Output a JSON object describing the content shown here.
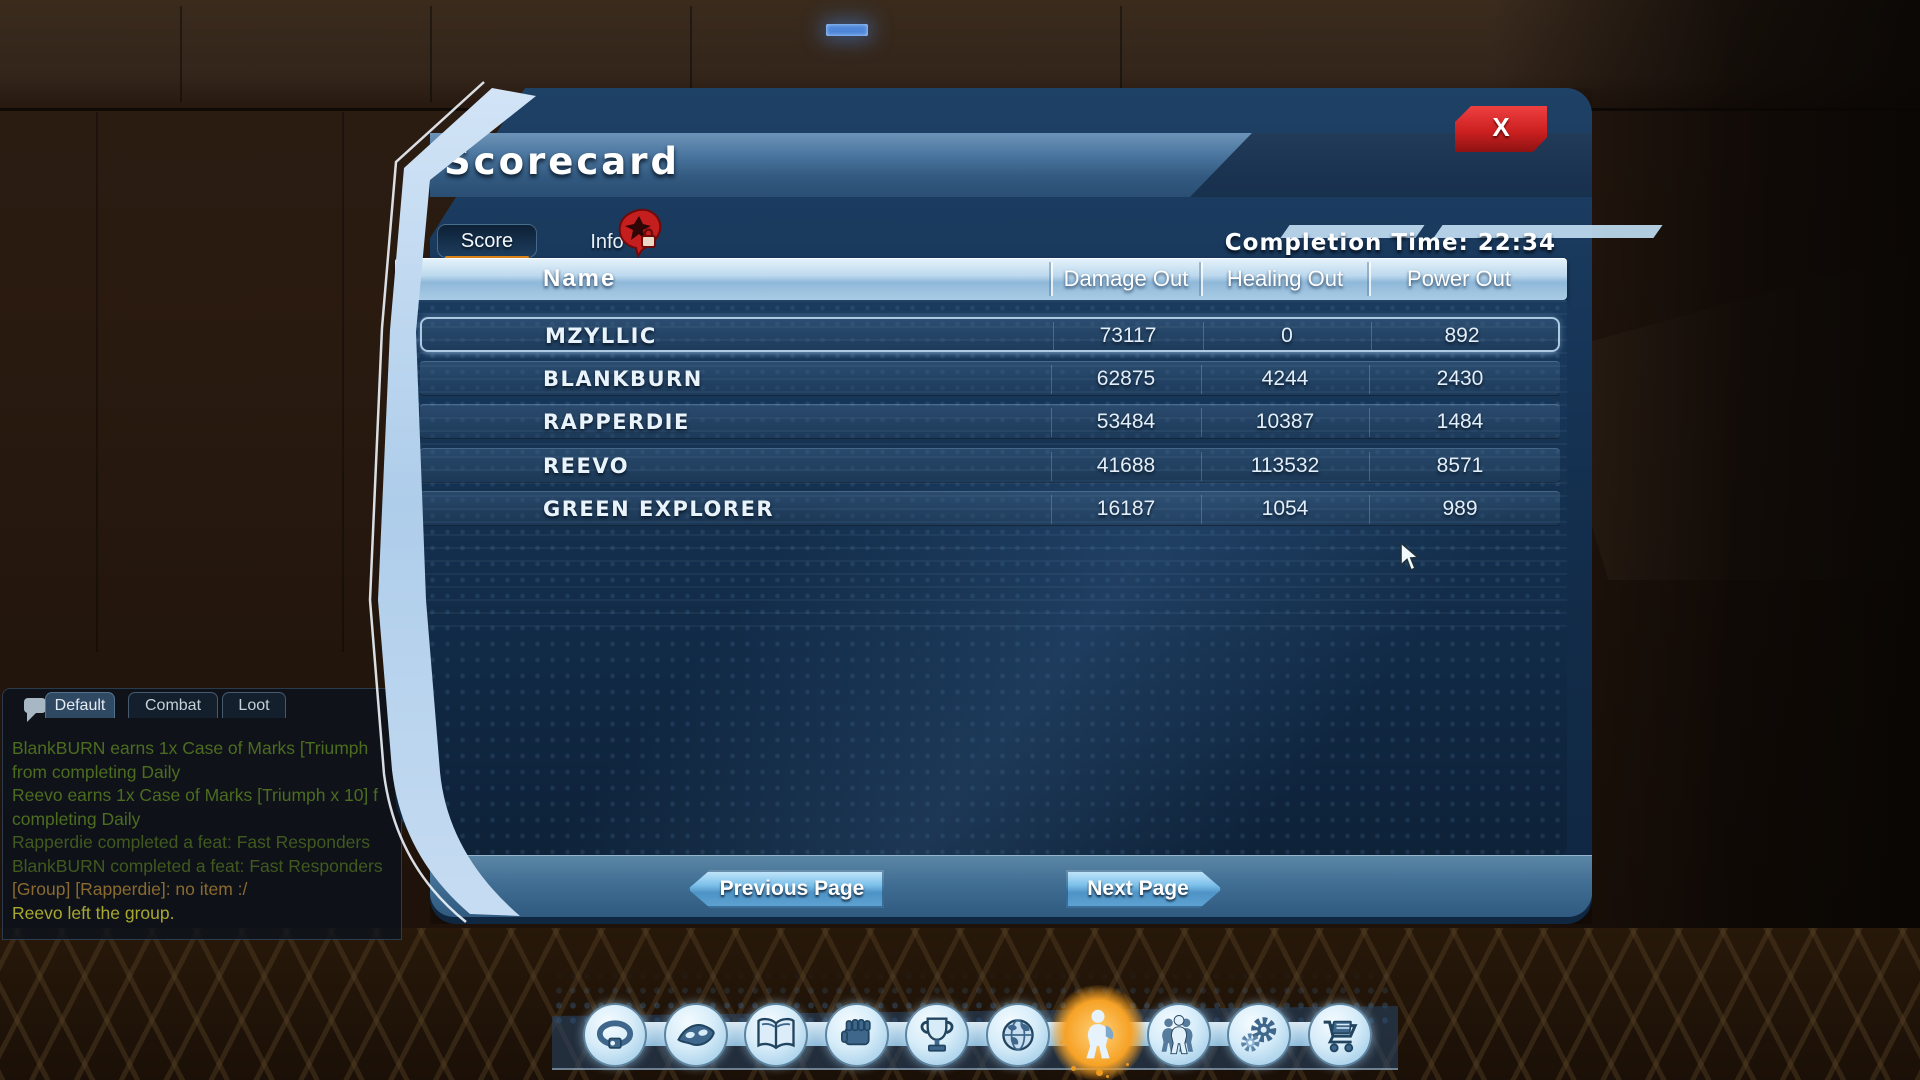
{
  "window": {
    "title": "Scorecard",
    "close_label": "X",
    "completion_time": "Completion Time: 22:34",
    "tabs": [
      {
        "label": "Score",
        "active": true
      },
      {
        "label": "Info",
        "active": false,
        "badge_icon": "red-lock-badge-icon"
      }
    ]
  },
  "table": {
    "columns": [
      "Name",
      "Damage Out",
      "Healing Out",
      "Power Out"
    ],
    "rows": [
      {
        "name": "MZYLLIC",
        "damage_out": "73117",
        "healing_out": "0",
        "power_out": "892",
        "highlighted": true
      },
      {
        "name": "BLANKBURN",
        "damage_out": "62875",
        "healing_out": "4244",
        "power_out": "2430",
        "highlighted": false
      },
      {
        "name": "RAPPERDIE",
        "damage_out": "53484",
        "healing_out": "10387",
        "power_out": "1484",
        "highlighted": false
      },
      {
        "name": "REEVO",
        "damage_out": "41688",
        "healing_out": "113532",
        "power_out": "8571",
        "highlighted": false
      },
      {
        "name": "GREEN EXPLORER",
        "damage_out": "16187",
        "healing_out": "1054",
        "power_out": "989",
        "highlighted": false
      }
    ]
  },
  "pagination": {
    "previous_label": "Previous Page",
    "next_label": "Next Page"
  },
  "chat": {
    "tabs": [
      {
        "label": "Default",
        "active": true
      },
      {
        "label": "Combat",
        "active": false
      },
      {
        "label": "Loot",
        "active": false
      }
    ],
    "messages": [
      {
        "text": "BlankBURN earns 1x Case of Marks [Triumph",
        "kind": "loot"
      },
      {
        "text": "from completing Daily",
        "kind": "loot"
      },
      {
        "text": "Reevo earns 1x Case of Marks [Triumph x 10] f",
        "kind": "loot"
      },
      {
        "text": "completing Daily",
        "kind": "loot"
      },
      {
        "text": "Rapperdie completed a feat: Fast Responders",
        "kind": "feat"
      },
      {
        "text": "BlankBURN completed a feat: Fast Responders",
        "kind": "feat"
      },
      {
        "text": "[Group] [Rapperdie]: no item :/",
        "kind": "group"
      },
      {
        "text": "Reevo left the group.",
        "kind": "system"
      }
    ],
    "message_colors": {
      "loot": "#4c6c20",
      "feat": "#41591e",
      "group": "#8a6a2e",
      "system": "#a8a72e"
    }
  },
  "dock": {
    "icons": [
      {
        "name": "utility-belt-icon",
        "active": false
      },
      {
        "name": "mask-icon",
        "active": false
      },
      {
        "name": "journal-book-icon",
        "active": false
      },
      {
        "name": "fist-icon",
        "active": false
      },
      {
        "name": "feats-trophy-icon",
        "active": false
      },
      {
        "name": "map-globe-icon",
        "active": false
      },
      {
        "name": "character-icon",
        "active": true
      },
      {
        "name": "group-icon",
        "active": false
      },
      {
        "name": "settings-gear-icon",
        "active": false
      },
      {
        "name": "marketplace-cart-icon",
        "active": false
      }
    ]
  },
  "colors": {
    "accent_orange": "#e0861a",
    "close_red": "#cc2020",
    "panel_accent_blue": "#bcd8f2",
    "active_dock_orange": "#f6a226"
  }
}
